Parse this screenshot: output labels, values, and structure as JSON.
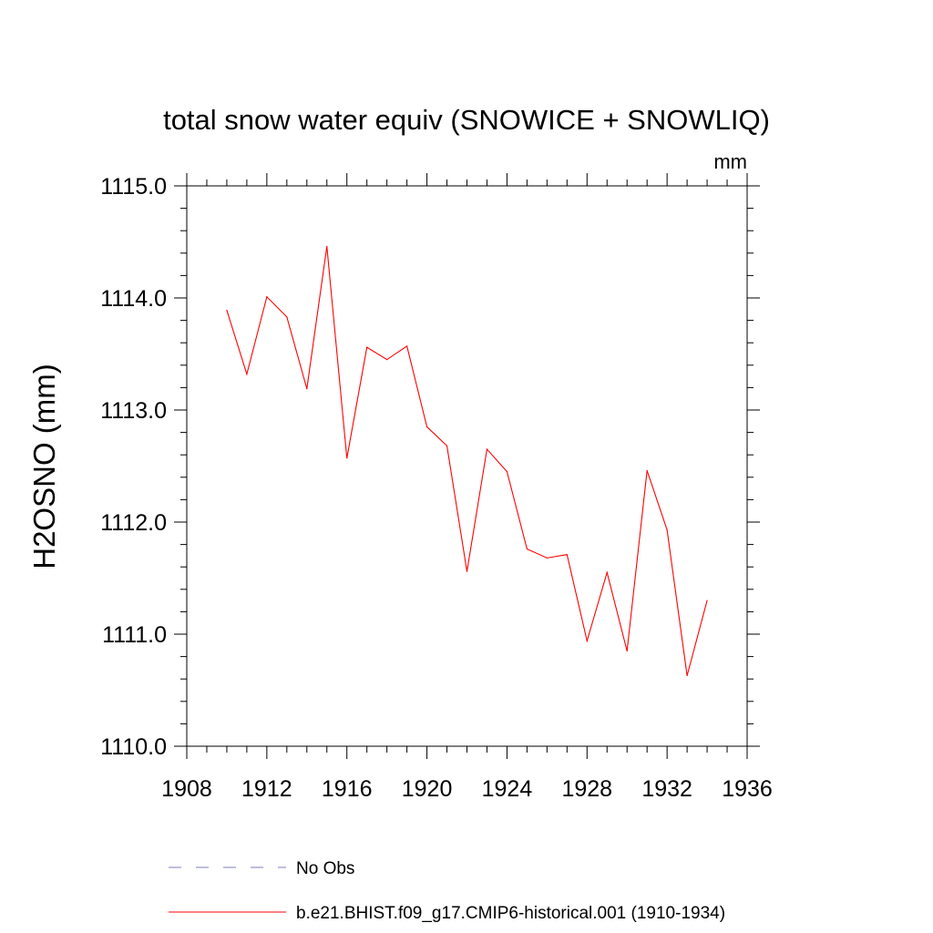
{
  "chart_data": {
    "type": "line",
    "title": "total snow water equiv (SNOWICE + SNOWLIQ)",
    "units": "mm",
    "xlabel": "",
    "ylabel": "H2OSNO  (mm)",
    "xlim": [
      1908,
      1936
    ],
    "ylim": [
      1110.0,
      1115.0
    ],
    "x_ticks": [
      1908,
      1912,
      1916,
      1920,
      1924,
      1928,
      1932,
      1936
    ],
    "x_tick_labels": [
      "1908",
      "1912",
      "1916",
      "1920",
      "1924",
      "1928",
      "1932",
      "1936"
    ],
    "y_ticks": [
      1110.0,
      1111.0,
      1112.0,
      1113.0,
      1114.0,
      1115.0
    ],
    "y_tick_labels": [
      "1110.0",
      "1111.0",
      "1112.0",
      "1113.0",
      "1114.0",
      "1115.0"
    ],
    "grid": false,
    "legend_position": "bottom",
    "series": [
      {
        "name": "No Obs",
        "color": "#7b7bbf",
        "dashed": true,
        "x": [],
        "values": []
      },
      {
        "name": "b.e21.BHIST.f09_g17.CMIP6-historical.001 (1910-1934)",
        "color": "#ff0000",
        "dashed": false,
        "x": [
          1910,
          1911,
          1912,
          1913,
          1914,
          1915,
          1916,
          1917,
          1918,
          1919,
          1920,
          1921,
          1922,
          1923,
          1924,
          1925,
          1926,
          1927,
          1928,
          1929,
          1930,
          1931,
          1932,
          1933,
          1934
        ],
        "values": [
          1113.89,
          1113.32,
          1114.01,
          1113.83,
          1113.19,
          1114.46,
          1112.57,
          1113.56,
          1113.45,
          1113.57,
          1112.85,
          1112.68,
          1111.56,
          1112.65,
          1112.45,
          1111.76,
          1111.68,
          1111.71,
          1110.94,
          1111.55,
          1110.85,
          1112.46,
          1111.93,
          1110.63,
          1111.3
        ]
      }
    ]
  }
}
